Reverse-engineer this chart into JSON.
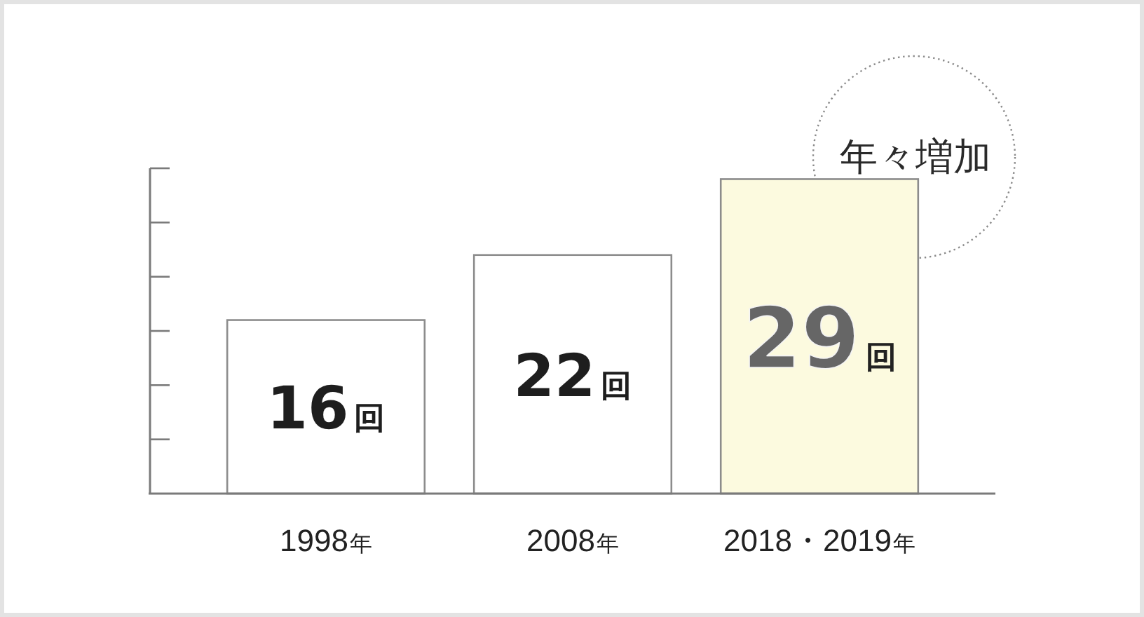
{
  "chart_data": {
    "type": "bar",
    "categories": [
      "1998年",
      "2008年",
      "2018・2019年"
    ],
    "values": [
      16,
      22,
      29
    ],
    "colors": [
      "#ffffff",
      "#ffffff",
      "#fcfadf"
    ],
    "value_labels": [
      "16回",
      "22回",
      "29回"
    ],
    "ylim": [
      0,
      30
    ],
    "yticks": [
      {
        "value": 5,
        "label": null
      },
      {
        "value": 10,
        "label": null
      },
      {
        "value": 15,
        "label": null
      },
      {
        "value": 20,
        "label": null
      },
      {
        "value": 25,
        "label": null
      },
      {
        "value": 30,
        "label": null
      }
    ],
    "tick_labels": "x",
    "annotations": [
      "年々増加"
    ]
  }
}
